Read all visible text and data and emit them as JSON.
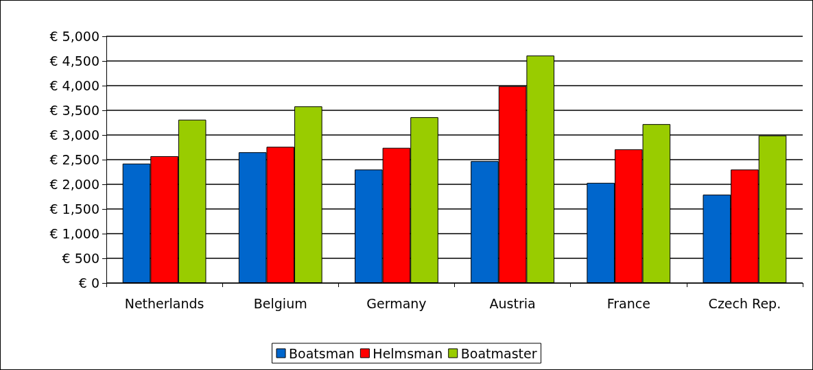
{
  "chart_data": {
    "type": "bar",
    "categories": [
      "Netherlands",
      "Belgium",
      "Germany",
      "Austria",
      "France",
      "Czech Rep."
    ],
    "series": [
      {
        "name": "Boatsman",
        "color": "#0066cc",
        "values": [
          2420,
          2650,
          2300,
          2470,
          2030,
          1790
        ]
      },
      {
        "name": "Helmsman",
        "color": "#ff0000",
        "values": [
          2570,
          2760,
          2740,
          3990,
          2710,
          2300
        ]
      },
      {
        "name": "Boatmaster",
        "color": "#99cc00",
        "values": [
          3310,
          3580,
          3360,
          4610,
          3220,
          2990
        ]
      }
    ],
    "ylim": [
      0,
      5000
    ],
    "yticks": [
      {
        "value": 0,
        "label": "€ 0"
      },
      {
        "value": 500,
        "label": "€ 500"
      },
      {
        "value": 1000,
        "label": "€ 1,000"
      },
      {
        "value": 1500,
        "label": "€ 1,500"
      },
      {
        "value": 2000,
        "label": "€ 2,000"
      },
      {
        "value": 2500,
        "label": "€ 2,500"
      },
      {
        "value": 3000,
        "label": "€ 3,000"
      },
      {
        "value": 3500,
        "label": "€ 3,500"
      },
      {
        "value": 4000,
        "label": "€ 4,000"
      },
      {
        "value": 4500,
        "label": "€ 4,500"
      },
      {
        "value": 5000,
        "label": "€ 5,000"
      }
    ],
    "grid": true,
    "legend": "bottom"
  }
}
